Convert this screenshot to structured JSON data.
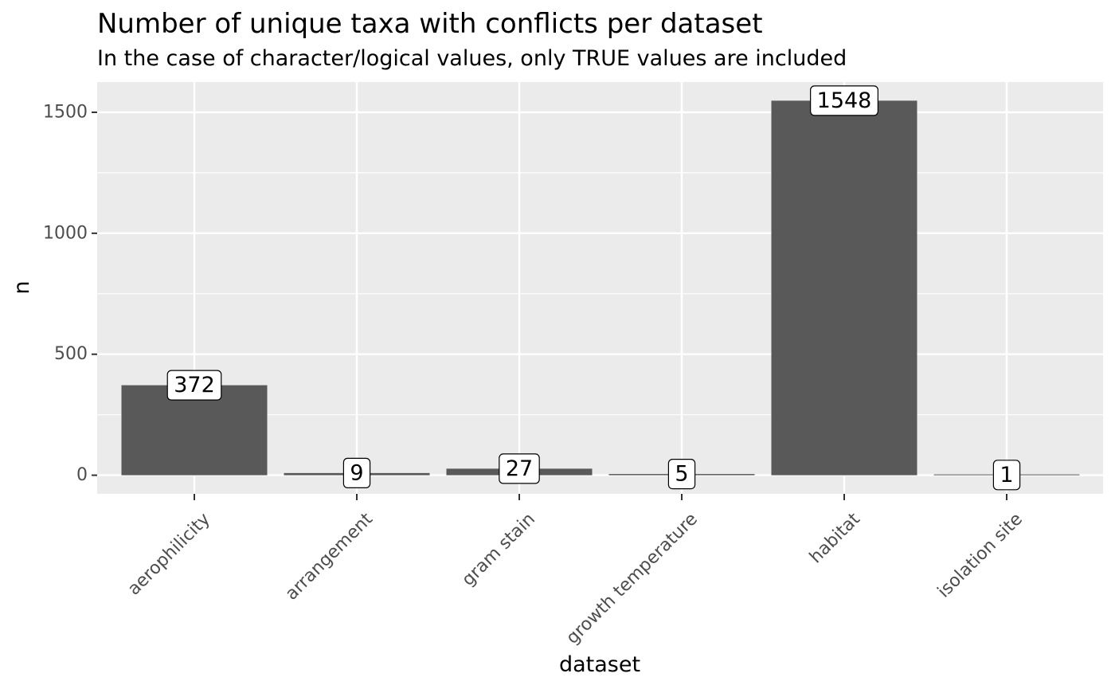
{
  "chart_data": {
    "type": "bar",
    "title": "Number of unique taxa with conflicts per dataset",
    "subtitle": "In the case of character/logical values, only TRUE values are included",
    "xlabel": "dataset",
    "ylabel": "n",
    "categories": [
      "aerophilicity",
      "arrangement",
      "gram stain",
      "growth temperature",
      "habitat",
      "isolation site"
    ],
    "values": [
      372,
      9,
      27,
      5,
      1548,
      1
    ],
    "data_labels": [
      "372",
      "9",
      "27",
      "5",
      "1548",
      "1"
    ],
    "y_ticks": [
      0,
      500,
      1000,
      1500
    ],
    "y_tick_labels": [
      "0",
      "500",
      "1000",
      "1500"
    ],
    "ylim": [
      -77,
      1625
    ],
    "grid": true,
    "legend": "none",
    "colors": {
      "bar": "#595959",
      "panel_background": "#ebebeb",
      "grid": "#ffffff",
      "tick_text": "#4d4d4d",
      "label_box": "#ffffff"
    }
  }
}
